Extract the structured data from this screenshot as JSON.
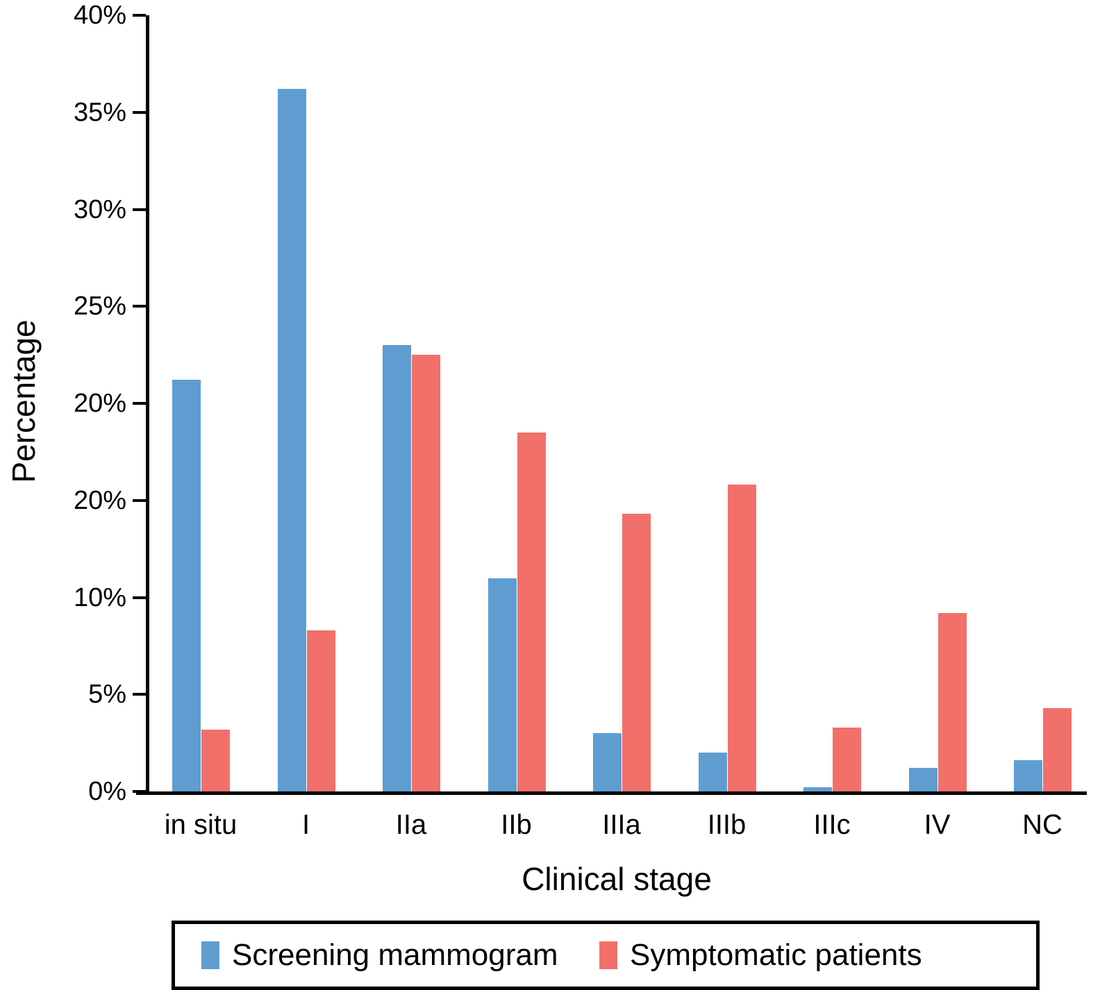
{
  "chart_data": {
    "type": "bar",
    "title": "",
    "xlabel": "Clinical stage",
    "ylabel": "Percentage",
    "categories": [
      "in situ",
      "I",
      "IIa",
      "IIb",
      "IIIa",
      "IIIb",
      "IIIc",
      "IV",
      "NC"
    ],
    "series": [
      {
        "name": "Screening mammogram",
        "color": "#5f9dd1",
        "values": [
          21.2,
          36.2,
          23.0,
          11.0,
          3.0,
          2.0,
          0.2,
          1.2,
          1.6
        ]
      },
      {
        "name": "Symptomatic patients",
        "color": "#f2706a",
        "values": [
          3.2,
          8.3,
          22.5,
          18.5,
          14.3,
          15.8,
          3.3,
          9.2,
          4.3
        ]
      }
    ],
    "ylim": [
      0,
      40
    ],
    "y_tick_labels_top_to_bottom": [
      "40%",
      "35%",
      "30%",
      "25%",
      "20%",
      "20%",
      "10%",
      "5%",
      "0%"
    ],
    "y_axis_note": "tick labels exactly as printed in the figure; the second '20%' sits at the 15% position",
    "grid": false,
    "legend_position": "bottom",
    "bar_orientation": "vertical-grouped"
  },
  "legend": {
    "items": [
      {
        "label": "Screening mammogram",
        "color": "#5f9dd1"
      },
      {
        "label": "Symptomatic patients",
        "color": "#f2706a"
      }
    ]
  },
  "axes": {
    "x_title": "Clinical stage",
    "y_title": "Percentage"
  },
  "colors": {
    "screening_blue": "#5f9dd1",
    "symptomatic_red": "#f2706a",
    "axis_black": "#000000",
    "background": "#ffffff"
  }
}
